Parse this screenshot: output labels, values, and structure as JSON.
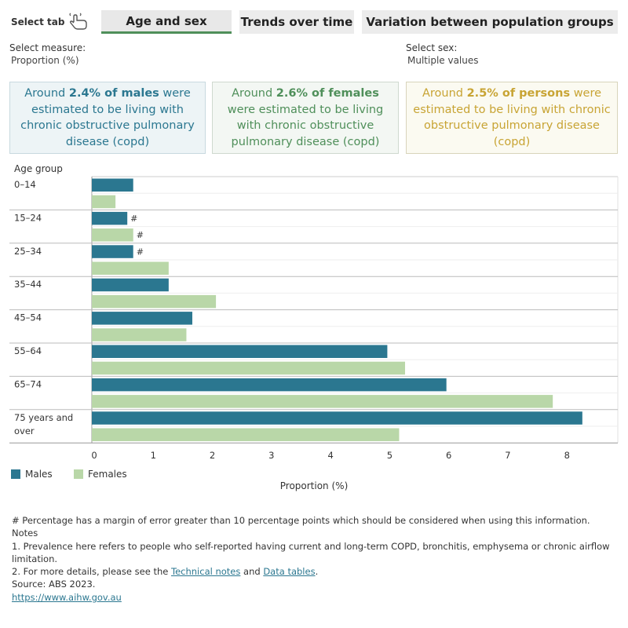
{
  "tabs": {
    "select_label": "Select tab",
    "items": [
      {
        "label": "Age and sex"
      },
      {
        "label": "Trends over time"
      },
      {
        "label": "Variation between population groups"
      }
    ]
  },
  "filters": {
    "measure_label": "Select measure:",
    "measure_value": "Proportion (%)",
    "sex_label": "Select sex:",
    "sex_value": "Multiple values"
  },
  "cards": {
    "males": {
      "pre": "Around ",
      "highlight": "2.4% of males",
      "post": " were estimated to be living with chronic obstructive pulmonary disease (copd)"
    },
    "females": {
      "pre": "Around ",
      "highlight": "2.6% of females",
      "post": " were estimated to be living with chronic obstructive pulmonary disease (copd)"
    },
    "persons": {
      "pre": "Around ",
      "highlight": "2.5% of persons",
      "post": " were estimated to be living with chronic obstructive pulmonary disease (copd)"
    }
  },
  "colors": {
    "males": "#2b7790",
    "females": "#b9d7a8"
  },
  "chart_data": {
    "type": "bar",
    "orientation": "horizontal",
    "category_axis_title": "Age group",
    "xlabel": "Proportion (%)",
    "xlim": [
      0,
      8.9
    ],
    "xticks": [
      0,
      1,
      2,
      3,
      4,
      5,
      6,
      7,
      8
    ],
    "categories": [
      "0–14",
      "15–24",
      "25–34",
      "35–44",
      "45–54",
      "55–64",
      "65–74",
      "75 years and over"
    ],
    "series": [
      {
        "name": "Males",
        "values": [
          0.7,
          0.6,
          0.7,
          1.3,
          1.7,
          5.0,
          6.0,
          8.3
        ],
        "flags": [
          "",
          "#",
          "#",
          "",
          "",
          "",
          "",
          ""
        ]
      },
      {
        "name": "Females",
        "values": [
          0.4,
          0.7,
          1.3,
          2.1,
          1.6,
          5.3,
          7.8,
          5.2
        ],
        "flags": [
          "",
          "#",
          "",
          "",
          "",
          "",
          "",
          ""
        ]
      }
    ]
  },
  "legend": {
    "males": "Males",
    "females": "Females"
  },
  "notes": {
    "hash_note": "# Percentage has a margin of error greater than 10 percentage points which should be considered when using this information.",
    "notes_title": "Notes",
    "note1": "1. Prevalence here refers to people who self-reported having current and long-term COPD, bronchitis, emphysema or chronic airflow limitation.",
    "note2_pre": "2. For more details, please see the ",
    "note2_link1": "Technical notes",
    "note2_mid": " and ",
    "note2_link2": "Data tables",
    "note2_post": ".",
    "source": "Source: ABS 2023.",
    "url": "https://www.aihw.gov.au"
  }
}
